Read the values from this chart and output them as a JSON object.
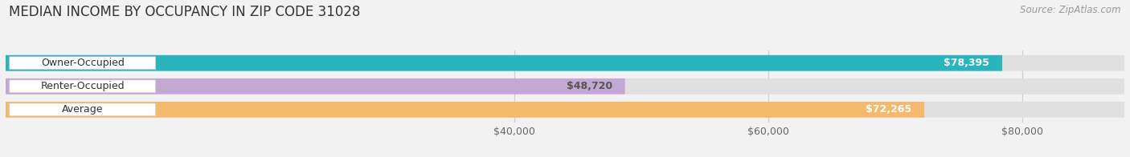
{
  "title": "MEDIAN INCOME BY OCCUPANCY IN ZIP CODE 31028",
  "source": "Source: ZipAtlas.com",
  "categories": [
    "Owner-Occupied",
    "Renter-Occupied",
    "Average"
  ],
  "values": [
    78395,
    48720,
    72265
  ],
  "labels": [
    "$78,395",
    "$48,720",
    "$72,265"
  ],
  "bar_colors": [
    "#2ab5bc",
    "#c4a8d4",
    "#f5b96e"
  ],
  "label_colors": [
    "#ffffff",
    "#555555",
    "#ffffff"
  ],
  "xmin": 0,
  "xmax": 88000,
  "xticks": [
    40000,
    60000,
    80000
  ],
  "xticklabels": [
    "$40,000",
    "$60,000",
    "$80,000"
  ],
  "title_fontsize": 12,
  "source_fontsize": 8.5,
  "background_color": "#f2f2f2",
  "bar_bg_color": "#e0e0e0",
  "bar_height": 0.68
}
